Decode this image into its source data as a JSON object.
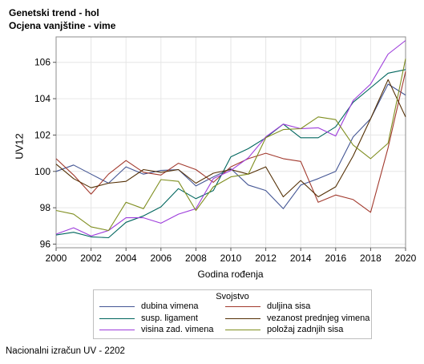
{
  "title": "Genetski trend - hol",
  "subtitle": "Ocjena vanjštine - vime",
  "footnote": "Nacionalni izračun UV - 2202",
  "chart_data": {
    "type": "line",
    "xlabel": "Godina rođenja",
    "ylabel": "UV12",
    "xlim": [
      2000,
      2020
    ],
    "ylim": [
      95.8,
      107.4
    ],
    "xticks": [
      2000,
      2002,
      2004,
      2006,
      2008,
      2010,
      2012,
      2014,
      2016,
      2018,
      2020
    ],
    "yticks": [
      96,
      98,
      100,
      102,
      104,
      106
    ],
    "grid": true,
    "legend_title": "Svojstvo",
    "legend_position": "bottom",
    "x": [
      2000,
      2001,
      2002,
      2003,
      2004,
      2005,
      2006,
      2007,
      2008,
      2009,
      2010,
      2011,
      2012,
      2013,
      2014,
      2015,
      2016,
      2017,
      2018,
      2019,
      2020
    ],
    "series": [
      {
        "name": "dubina vimena",
        "color": "#445694",
        "values": [
          100.0,
          100.35,
          99.85,
          99.35,
          100.25,
          99.85,
          100.05,
          100.1,
          99.2,
          99.7,
          100.15,
          99.25,
          98.95,
          97.95,
          99.25,
          99.6,
          100.0,
          101.9,
          102.9,
          104.8,
          104.2
        ]
      },
      {
        "name": "duljina sisa",
        "color": "#a23a2e",
        "values": [
          100.7,
          99.8,
          98.75,
          99.85,
          100.6,
          99.95,
          99.8,
          100.45,
          100.1,
          99.4,
          100.25,
          100.7,
          101.0,
          100.7,
          100.55,
          98.3,
          98.7,
          98.45,
          97.75,
          101.3,
          105.5
        ]
      },
      {
        "name": "susp. ligament",
        "color": "#01665e",
        "values": [
          96.5,
          96.65,
          96.4,
          96.35,
          97.2,
          97.55,
          98.05,
          99.05,
          98.5,
          98.95,
          100.8,
          101.25,
          101.85,
          102.6,
          101.85,
          101.85,
          102.45,
          103.8,
          104.6,
          105.4,
          105.6
        ]
      },
      {
        "name": "vezanost prednjeg vimena",
        "color": "#543005",
        "values": [
          100.4,
          99.6,
          99.1,
          99.35,
          99.45,
          100.1,
          99.95,
          100.1,
          99.35,
          99.9,
          100.1,
          99.85,
          100.25,
          98.6,
          99.5,
          98.6,
          99.15,
          100.85,
          102.9,
          105.05,
          103.0
        ]
      },
      {
        "name": "visina zad. vimena",
        "color": "#9d3cdb",
        "values": [
          96.55,
          96.9,
          96.45,
          96.75,
          97.45,
          97.45,
          97.15,
          97.65,
          97.95,
          99.6,
          100.05,
          100.75,
          101.9,
          102.6,
          102.35,
          102.4,
          101.95,
          103.9,
          104.8,
          106.45,
          107.2
        ]
      },
      {
        "name": "položaj zadnjih sisa",
        "color": "#7f8e1f",
        "values": [
          97.85,
          97.65,
          96.95,
          96.75,
          98.3,
          97.95,
          99.55,
          99.45,
          97.85,
          99.15,
          99.7,
          99.85,
          101.85,
          102.3,
          102.35,
          103.0,
          102.85,
          101.45,
          100.7,
          101.55,
          106.2
        ]
      }
    ]
  }
}
